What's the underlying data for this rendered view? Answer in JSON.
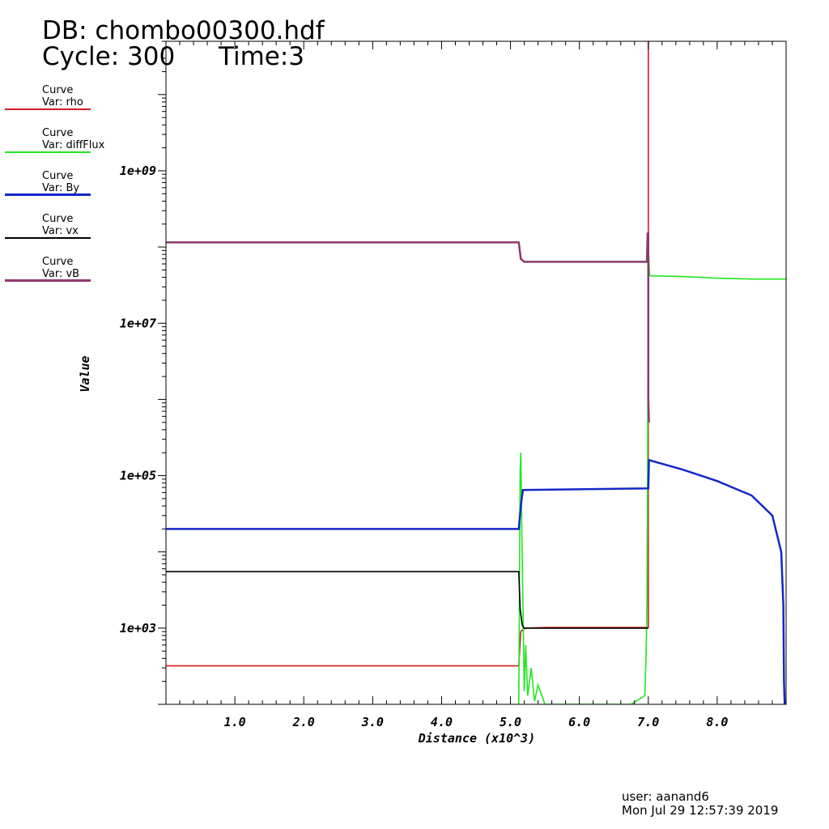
{
  "header": {
    "db": "DB: chombo00300.hdf",
    "cycle": "Cycle: 300",
    "time": "Time:3"
  },
  "legend": [
    {
      "title": "Curve",
      "var": "Var: rho",
      "color": "#d41c1c"
    },
    {
      "title": "Curve",
      "var": "Var: diffFlux",
      "color": "#22e622"
    },
    {
      "title": "Curve",
      "var": "Var: By",
      "color": "#1428c8"
    },
    {
      "title": "Curve",
      "var": "Var: vx",
      "color": "#000000"
    },
    {
      "title": "Curve",
      "var": "Var: vB",
      "color": "#8c3a6e"
    }
  ],
  "footer": {
    "user": "user: aanand6",
    "date": "Mon Jul 29 12:57:39 2019"
  },
  "chart_data": {
    "type": "line",
    "xlabel": "Distance (x10^3)",
    "ylabel": "Value",
    "xlim": [
      0,
      9.0
    ],
    "ylim": [
      100,
      50000000000.0
    ],
    "yscale": "log",
    "grid": false,
    "legend_position": "left",
    "x_ticks": [
      "1.0",
      "2.0",
      "3.0",
      "4.0",
      "5.0",
      "6.0",
      "7.0",
      "8.0"
    ],
    "y_ticks": [
      "1e+03",
      "1e+05",
      "1e+07",
      "1e+09"
    ],
    "series": [
      {
        "name": "rho",
        "color": "#d41c1c",
        "x": [
          0,
          5.12,
          5.15,
          5.2,
          5.5,
          7.0,
          7.0,
          7.02
        ],
        "y": [
          320,
          320,
          900,
          1000,
          1020,
          1020,
          50000000000.0,
          50000000000.0
        ]
      },
      {
        "name": "diffFlux",
        "color": "#22e622",
        "x": [
          5.12,
          5.14,
          5.15,
          5.17,
          5.2,
          5.22,
          5.25,
          5.3,
          5.35,
          5.4,
          5.5,
          6.75,
          6.95,
          6.97,
          6.98,
          6.99,
          7.0,
          7.02,
          7.5,
          8.0,
          8.5,
          9.0
        ],
        "y": [
          100,
          120000,
          200000,
          9000,
          150,
          600,
          130,
          300,
          110,
          180,
          100,
          100,
          130,
          500,
          2000,
          100000.0,
          100000000.0,
          42000000.0,
          41000000.0,
          39000000.0,
          38000000.0,
          38000000.0
        ]
      },
      {
        "name": "By",
        "color": "#1428c8",
        "x": [
          0,
          5.12,
          5.15,
          5.18,
          7.0,
          7.01,
          7.5,
          8.0,
          8.5,
          8.8,
          8.93,
          8.96,
          8.97,
          8.98
        ],
        "y": [
          20000,
          20000,
          40000,
          65000,
          68000,
          160000,
          120000,
          85000,
          55000,
          30000,
          10000,
          2000,
          200,
          100
        ]
      },
      {
        "name": "vx",
        "color": "#000000",
        "x": [
          0,
          5.12,
          5.14,
          5.17,
          5.2,
          7.0
        ],
        "y": [
          5500,
          5500,
          1800,
          1100,
          1000,
          1000
        ]
      },
      {
        "name": "vB",
        "color": "#8c3a6e",
        "x": [
          0,
          5.12,
          5.15,
          5.2,
          6.98,
          6.99,
          7.0,
          7.0,
          7.01
        ],
        "y": [
          115000000.0,
          115000000.0,
          70000000.0,
          64000000.0,
          64000000.0,
          150000000.0,
          150000000.0,
          1000000.0,
          500000.0
        ]
      }
    ]
  }
}
